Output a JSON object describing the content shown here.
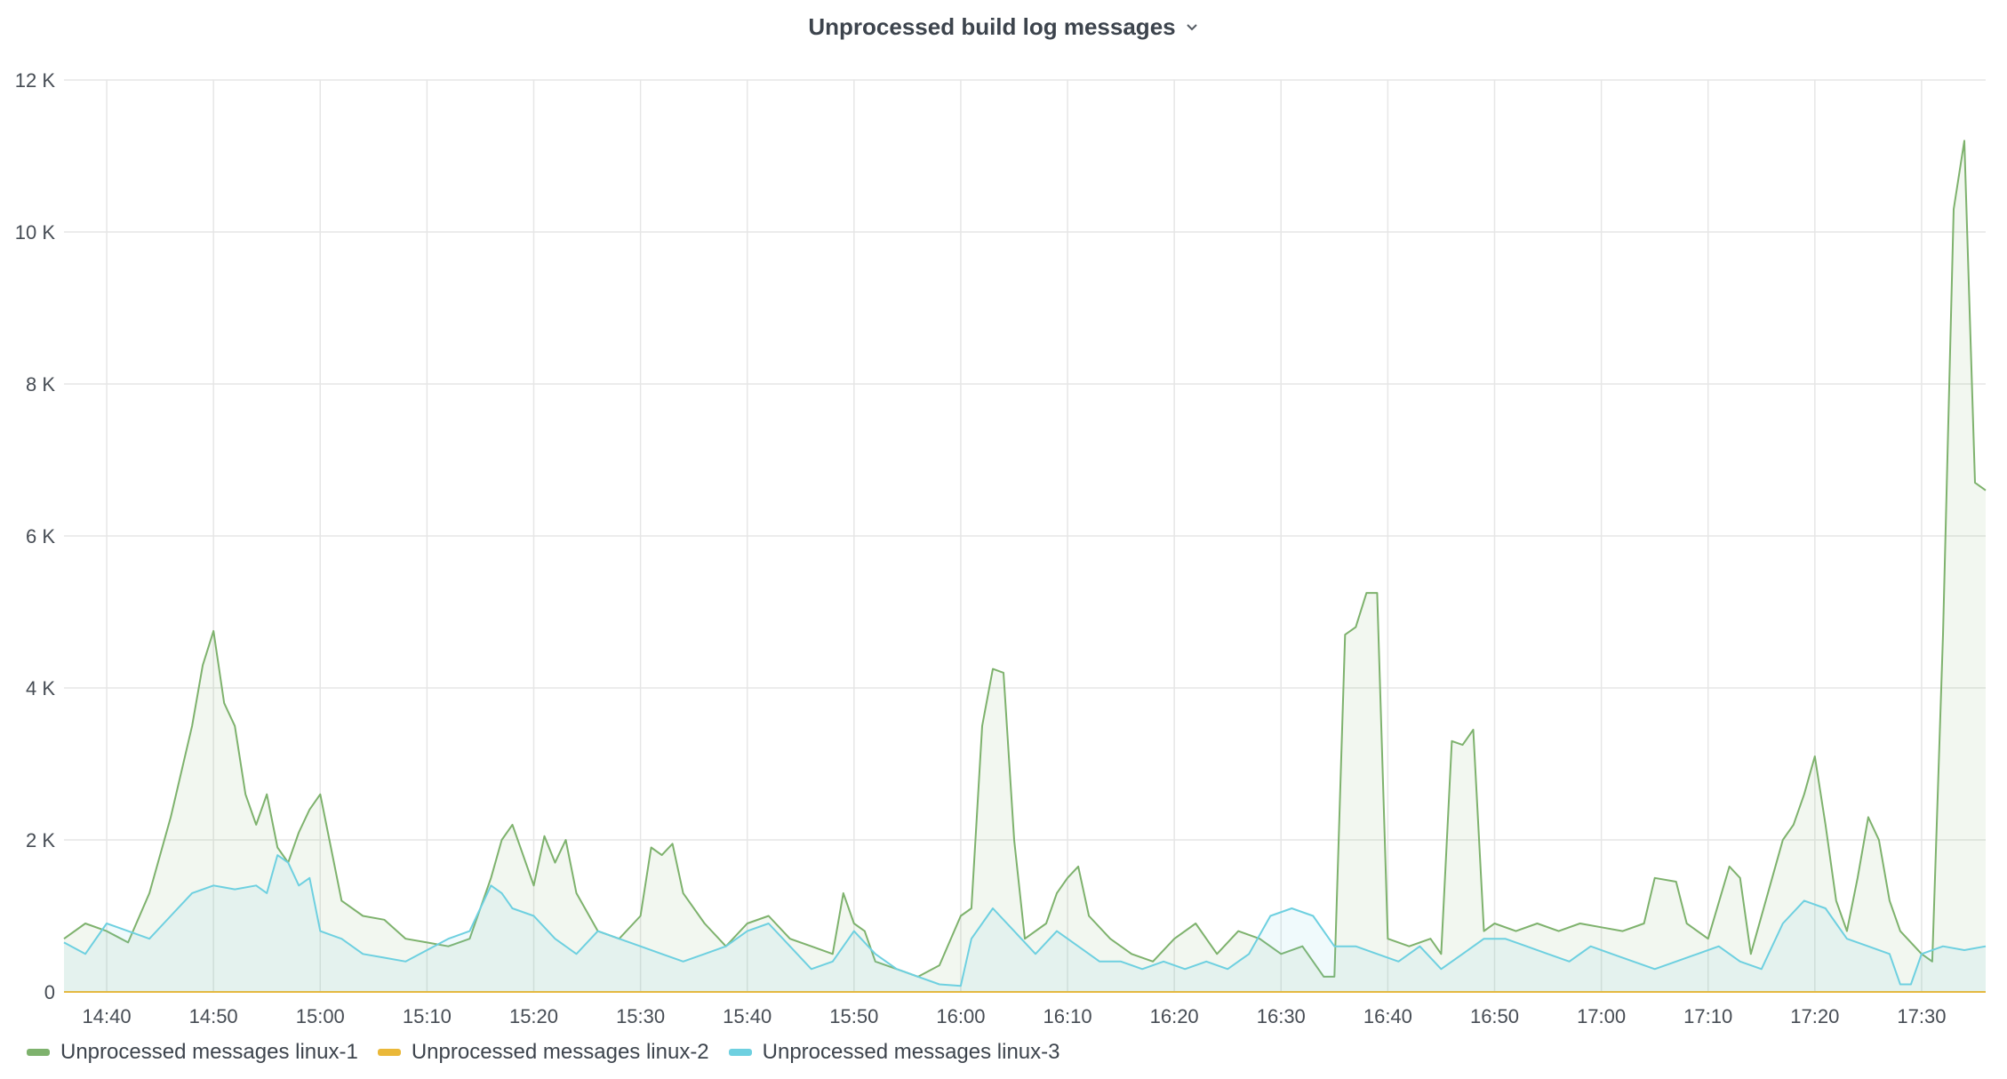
{
  "panel": {
    "title": "Unprocessed build log messages",
    "menu_icon": "chevron-down-icon"
  },
  "colors": {
    "linux-1": "#7eb26d",
    "linux-2": "#eab839",
    "linux-3": "#6ed0e0",
    "grid": "#e6e6e6"
  },
  "chart_data": {
    "type": "area",
    "title": "Unprocessed build log messages",
    "xlabel": "",
    "ylabel": "",
    "x_start": "14:36",
    "x_end": "17:36",
    "x_tick_labels": [
      "14:40",
      "14:50",
      "15:00",
      "15:10",
      "15:20",
      "15:30",
      "15:40",
      "15:50",
      "16:00",
      "16:10",
      "16:20",
      "16:30",
      "16:40",
      "16:50",
      "17:00",
      "17:10",
      "17:20",
      "17:30"
    ],
    "y_tick_labels": [
      "0",
      "2 K",
      "4 K",
      "6 K",
      "8 K",
      "10 K",
      "12 K"
    ],
    "ylim": [
      0,
      12000
    ],
    "grid": true,
    "legend_position": "bottom-left",
    "series": [
      {
        "name": "Unprocessed messages linux-1",
        "color": "#7eb26d",
        "points": [
          [
            "14:36",
            700
          ],
          [
            "14:38",
            900
          ],
          [
            "14:40",
            800
          ],
          [
            "14:42",
            650
          ],
          [
            "14:44",
            1300
          ],
          [
            "14:46",
            2300
          ],
          [
            "14:48",
            3500
          ],
          [
            "14:49",
            4300
          ],
          [
            "14:50",
            4750
          ],
          [
            "14:51",
            3800
          ],
          [
            "14:52",
            3500
          ],
          [
            "14:53",
            2600
          ],
          [
            "14:54",
            2200
          ],
          [
            "14:55",
            2600
          ],
          [
            "14:56",
            1900
          ],
          [
            "14:57",
            1700
          ],
          [
            "14:58",
            2100
          ],
          [
            "14:59",
            2400
          ],
          [
            "15:00",
            2600
          ],
          [
            "15:01",
            1900
          ],
          [
            "15:02",
            1200
          ],
          [
            "15:04",
            1000
          ],
          [
            "15:06",
            950
          ],
          [
            "15:08",
            700
          ],
          [
            "15:10",
            650
          ],
          [
            "15:12",
            600
          ],
          [
            "15:14",
            700
          ],
          [
            "15:16",
            1500
          ],
          [
            "15:17",
            2000
          ],
          [
            "15:18",
            2200
          ],
          [
            "15:19",
            1800
          ],
          [
            "15:20",
            1400
          ],
          [
            "15:21",
            2050
          ],
          [
            "15:22",
            1700
          ],
          [
            "15:23",
            2000
          ],
          [
            "15:24",
            1300
          ],
          [
            "15:26",
            800
          ],
          [
            "15:28",
            700
          ],
          [
            "15:30",
            1000
          ],
          [
            "15:31",
            1900
          ],
          [
            "15:32",
            1800
          ],
          [
            "15:33",
            1950
          ],
          [
            "15:34",
            1300
          ],
          [
            "15:36",
            900
          ],
          [
            "15:38",
            600
          ],
          [
            "15:40",
            900
          ],
          [
            "15:42",
            1000
          ],
          [
            "15:44",
            700
          ],
          [
            "15:46",
            600
          ],
          [
            "15:48",
            500
          ],
          [
            "15:49",
            1300
          ],
          [
            "15:50",
            900
          ],
          [
            "15:51",
            800
          ],
          [
            "15:52",
            400
          ],
          [
            "15:54",
            300
          ],
          [
            "15:56",
            200
          ],
          [
            "15:58",
            350
          ],
          [
            "16:00",
            1000
          ],
          [
            "16:01",
            1100
          ],
          [
            "16:02",
            3500
          ],
          [
            "16:03",
            4250
          ],
          [
            "16:04",
            4200
          ],
          [
            "16:05",
            2000
          ],
          [
            "16:06",
            700
          ],
          [
            "16:08",
            900
          ],
          [
            "16:09",
            1300
          ],
          [
            "16:10",
            1500
          ],
          [
            "16:11",
            1650
          ],
          [
            "16:12",
            1000
          ],
          [
            "16:14",
            700
          ],
          [
            "16:16",
            500
          ],
          [
            "16:18",
            400
          ],
          [
            "16:20",
            700
          ],
          [
            "16:22",
            900
          ],
          [
            "16:24",
            500
          ],
          [
            "16:26",
            800
          ],
          [
            "16:28",
            700
          ],
          [
            "16:30",
            500
          ],
          [
            "16:32",
            600
          ],
          [
            "16:34",
            200
          ],
          [
            "16:35",
            200
          ],
          [
            "16:36",
            4700
          ],
          [
            "16:37",
            4800
          ],
          [
            "16:38",
            5250
          ],
          [
            "16:39",
            5250
          ],
          [
            "16:40",
            700
          ],
          [
            "16:42",
            600
          ],
          [
            "16:44",
            700
          ],
          [
            "16:45",
            500
          ],
          [
            "16:46",
            3300
          ],
          [
            "16:47",
            3250
          ],
          [
            "16:48",
            3450
          ],
          [
            "16:49",
            800
          ],
          [
            "16:50",
            900
          ],
          [
            "16:52",
            800
          ],
          [
            "16:54",
            900
          ],
          [
            "16:56",
            800
          ],
          [
            "16:58",
            900
          ],
          [
            "17:00",
            850
          ],
          [
            "17:02",
            800
          ],
          [
            "17:04",
            900
          ],
          [
            "17:05",
            1500
          ],
          [
            "17:07",
            1450
          ],
          [
            "17:08",
            900
          ],
          [
            "17:10",
            700
          ],
          [
            "17:12",
            1650
          ],
          [
            "17:13",
            1500
          ],
          [
            "17:14",
            500
          ],
          [
            "17:16",
            1500
          ],
          [
            "17:17",
            2000
          ],
          [
            "17:18",
            2200
          ],
          [
            "17:19",
            2600
          ],
          [
            "17:20",
            3100
          ],
          [
            "17:21",
            2200
          ],
          [
            "17:22",
            1200
          ],
          [
            "17:23",
            800
          ],
          [
            "17:24",
            1500
          ],
          [
            "17:25",
            2300
          ],
          [
            "17:26",
            2000
          ],
          [
            "17:27",
            1200
          ],
          [
            "17:28",
            800
          ],
          [
            "17:30",
            500
          ],
          [
            "17:31",
            400
          ],
          [
            "17:32",
            4700
          ],
          [
            "17:33",
            10300
          ],
          [
            "17:34",
            11200
          ],
          [
            "17:35",
            6700
          ],
          [
            "17:36",
            6600
          ]
        ]
      },
      {
        "name": "Unprocessed messages linux-2",
        "color": "#eab839",
        "points": [
          [
            "14:36",
            0
          ],
          [
            "17:36",
            0
          ]
        ]
      },
      {
        "name": "Unprocessed messages linux-3",
        "color": "#6ed0e0",
        "points": [
          [
            "14:36",
            650
          ],
          [
            "14:38",
            500
          ],
          [
            "14:40",
            900
          ],
          [
            "14:42",
            800
          ],
          [
            "14:44",
            700
          ],
          [
            "14:46",
            1000
          ],
          [
            "14:48",
            1300
          ],
          [
            "14:50",
            1400
          ],
          [
            "14:52",
            1350
          ],
          [
            "14:54",
            1400
          ],
          [
            "14:55",
            1300
          ],
          [
            "14:56",
            1800
          ],
          [
            "14:57",
            1700
          ],
          [
            "14:58",
            1400
          ],
          [
            "14:59",
            1500
          ],
          [
            "15:00",
            800
          ],
          [
            "15:02",
            700
          ],
          [
            "15:04",
            500
          ],
          [
            "15:06",
            450
          ],
          [
            "15:08",
            400
          ],
          [
            "15:10",
            550
          ],
          [
            "15:12",
            700
          ],
          [
            "15:14",
            800
          ],
          [
            "15:16",
            1400
          ],
          [
            "15:17",
            1300
          ],
          [
            "15:18",
            1100
          ],
          [
            "15:20",
            1000
          ],
          [
            "15:22",
            700
          ],
          [
            "15:24",
            500
          ],
          [
            "15:26",
            800
          ],
          [
            "15:28",
            700
          ],
          [
            "15:30",
            600
          ],
          [
            "15:32",
            500
          ],
          [
            "15:34",
            400
          ],
          [
            "15:36",
            500
          ],
          [
            "15:38",
            600
          ],
          [
            "15:40",
            800
          ],
          [
            "15:42",
            900
          ],
          [
            "15:44",
            600
          ],
          [
            "15:46",
            300
          ],
          [
            "15:48",
            400
          ],
          [
            "15:50",
            800
          ],
          [
            "15:52",
            500
          ],
          [
            "15:54",
            300
          ],
          [
            "15:56",
            200
          ],
          [
            "15:58",
            100
          ],
          [
            "16:00",
            80
          ],
          [
            "16:01",
            700
          ],
          [
            "16:03",
            1100
          ],
          [
            "16:05",
            800
          ],
          [
            "16:07",
            500
          ],
          [
            "16:09",
            800
          ],
          [
            "16:11",
            600
          ],
          [
            "16:13",
            400
          ],
          [
            "16:15",
            400
          ],
          [
            "16:17",
            300
          ],
          [
            "16:19",
            400
          ],
          [
            "16:21",
            300
          ],
          [
            "16:23",
            400
          ],
          [
            "16:25",
            300
          ],
          [
            "16:27",
            500
          ],
          [
            "16:29",
            1000
          ],
          [
            "16:31",
            1100
          ],
          [
            "16:33",
            1000
          ],
          [
            "16:35",
            600
          ],
          [
            "16:37",
            600
          ],
          [
            "16:39",
            500
          ],
          [
            "16:41",
            400
          ],
          [
            "16:43",
            600
          ],
          [
            "16:45",
            300
          ],
          [
            "16:47",
            500
          ],
          [
            "16:49",
            700
          ],
          [
            "16:51",
            700
          ],
          [
            "16:53",
            600
          ],
          [
            "16:55",
            500
          ],
          [
            "16:57",
            400
          ],
          [
            "16:59",
            600
          ],
          [
            "17:01",
            500
          ],
          [
            "17:03",
            400
          ],
          [
            "17:05",
            300
          ],
          [
            "17:07",
            400
          ],
          [
            "17:09",
            500
          ],
          [
            "17:11",
            600
          ],
          [
            "17:13",
            400
          ],
          [
            "17:15",
            300
          ],
          [
            "17:17",
            900
          ],
          [
            "17:19",
            1200
          ],
          [
            "17:21",
            1100
          ],
          [
            "17:23",
            700
          ],
          [
            "17:25",
            600
          ],
          [
            "17:27",
            500
          ],
          [
            "17:28",
            100
          ],
          [
            "17:29",
            100
          ],
          [
            "17:30",
            500
          ],
          [
            "17:32",
            600
          ],
          [
            "17:34",
            550
          ],
          [
            "17:36",
            600
          ]
        ]
      }
    ]
  }
}
